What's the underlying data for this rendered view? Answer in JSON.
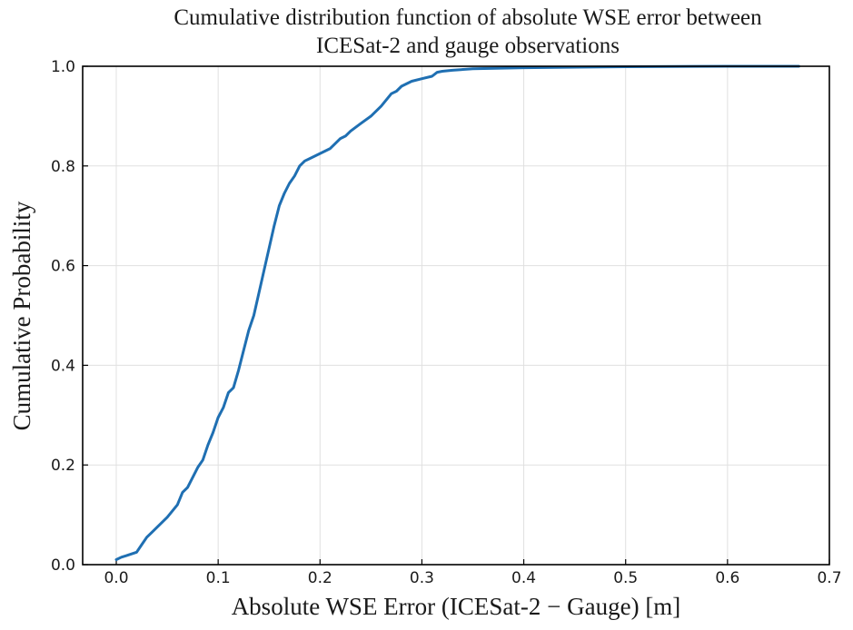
{
  "chart_data": {
    "type": "line",
    "title": [
      "Cumulative distribution function of absolute WSE error between",
      "ICESat-2 and gauge observations"
    ],
    "xlabel": "Absolute WSE Error (ICESat-2 − Gauge) [m]",
    "ylabel": "Cumulative Probability",
    "xlim": [
      -0.033,
      0.7
    ],
    "ylim": [
      0,
      1
    ],
    "xticks": [
      0.0,
      0.1,
      0.2,
      0.3,
      0.4,
      0.5,
      0.6,
      0.7
    ],
    "yticks": [
      0.0,
      0.2,
      0.4,
      0.6,
      0.8,
      1.0
    ],
    "xtick_labels": [
      "0.0",
      "0.1",
      "0.2",
      "0.3",
      "0.4",
      "0.5",
      "0.6",
      "0.7"
    ],
    "ytick_labels": [
      "0.0",
      "0.2",
      "0.4",
      "0.6",
      "0.8",
      "1.0"
    ],
    "grid": true,
    "line_color": "#1f6fb2",
    "series": [
      {
        "x": [
          0.0,
          0.005,
          0.01,
          0.02,
          0.025,
          0.03,
          0.035,
          0.045,
          0.05,
          0.06,
          0.065,
          0.07,
          0.075,
          0.08,
          0.085,
          0.09,
          0.095,
          0.1,
          0.105,
          0.11,
          0.115,
          0.12,
          0.125,
          0.13,
          0.135,
          0.14,
          0.145,
          0.15,
          0.155,
          0.16,
          0.165,
          0.17,
          0.175,
          0.18,
          0.185,
          0.19,
          0.2,
          0.21,
          0.215,
          0.22,
          0.225,
          0.23,
          0.24,
          0.25,
          0.26,
          0.27,
          0.275,
          0.28,
          0.29,
          0.3,
          0.31,
          0.315,
          0.32,
          0.33,
          0.35,
          0.4,
          0.5,
          0.6,
          0.67
        ],
        "y": [
          0.01,
          0.015,
          0.018,
          0.025,
          0.04,
          0.055,
          0.065,
          0.085,
          0.095,
          0.12,
          0.145,
          0.155,
          0.175,
          0.195,
          0.21,
          0.24,
          0.265,
          0.295,
          0.315,
          0.345,
          0.355,
          0.39,
          0.43,
          0.47,
          0.5,
          0.545,
          0.59,
          0.635,
          0.68,
          0.72,
          0.745,
          0.765,
          0.78,
          0.8,
          0.81,
          0.815,
          0.825,
          0.835,
          0.845,
          0.855,
          0.86,
          0.87,
          0.885,
          0.9,
          0.92,
          0.945,
          0.95,
          0.96,
          0.97,
          0.975,
          0.98,
          0.988,
          0.99,
          0.992,
          0.995,
          0.997,
          0.999,
          1.0,
          1.0
        ]
      }
    ]
  }
}
